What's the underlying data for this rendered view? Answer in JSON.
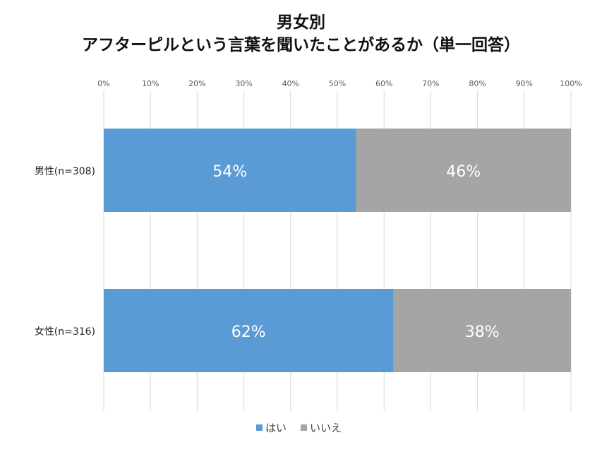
{
  "chart_data": {
    "type": "bar",
    "orientation": "horizontal",
    "stacked": "percent",
    "title": [
      "男女別",
      "アフターピルという言葉を聞いたことがあるか（単一回答）"
    ],
    "categories": [
      "男性(n=308)",
      "女性(n=316)"
    ],
    "series": [
      {
        "name": "はい",
        "values": [
          54,
          62
        ],
        "color": "#5B9BD5"
      },
      {
        "name": "いいえ",
        "values": [
          46,
          38
        ],
        "color": "#A5A5A5"
      }
    ],
    "data_labels": [
      [
        "54%",
        "62%"
      ],
      [
        "46%",
        "38%"
      ]
    ],
    "xlim": [
      0,
      100
    ],
    "xticks": [
      "0%",
      "10%",
      "20%",
      "30%",
      "40%",
      "50%",
      "60%",
      "70%",
      "80%",
      "90%",
      "100%"
    ],
    "x_axis_position": "top",
    "grid": true,
    "legend": "bottom"
  }
}
